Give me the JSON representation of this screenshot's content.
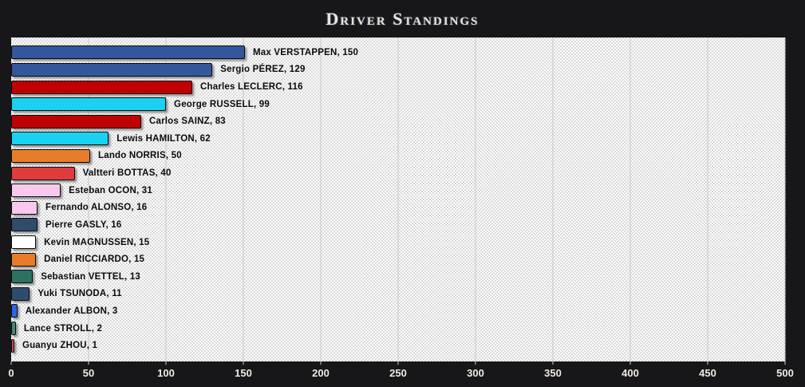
{
  "title": "Driver Standings",
  "theme": {
    "page_background": "#17171a",
    "plot_background": "#fdfdfd",
    "plot_pattern_color": "#dadada",
    "gridline_color": "#c7c7c7",
    "bar_border_color": "#0a0a0a",
    "bar_label_color": "#0b0b0b",
    "axis_label_color": "#f0ebe1",
    "title_color": "#e9e3d9"
  },
  "chart_data": {
    "type": "bar",
    "orientation": "horizontal",
    "title": "Driver Standings",
    "xlabel": "",
    "ylabel": "",
    "xlim": [
      0,
      500
    ],
    "x_ticks": [
      0,
      50,
      100,
      150,
      200,
      250,
      300,
      350,
      400,
      450,
      500
    ],
    "grid": "vertical-major",
    "legend": "none",
    "label_format": "{name}, {points}",
    "drivers": [
      {
        "name": "Max VERSTAPPEN",
        "points": 150,
        "color": "#34569d"
      },
      {
        "name": "Sergio PÉREZ",
        "points": 129,
        "color": "#34569d"
      },
      {
        "name": "Charles LECLERC",
        "points": 116,
        "color": "#c00101"
      },
      {
        "name": "George RUSSELL",
        "points": 99,
        "color": "#1ad2f0"
      },
      {
        "name": "Carlos SAINZ",
        "points": 83,
        "color": "#c00101"
      },
      {
        "name": "Lewis HAMILTON",
        "points": 62,
        "color": "#1ad2f0"
      },
      {
        "name": "Lando NORRIS",
        "points": 50,
        "color": "#e77d2a"
      },
      {
        "name": "Valtteri BOTTAS",
        "points": 40,
        "color": "#e13c3c"
      },
      {
        "name": "Esteban OCON",
        "points": 31,
        "color": "#f9c8ee"
      },
      {
        "name": "Fernando ALONSO",
        "points": 16,
        "color": "#f9c8ee"
      },
      {
        "name": "Pierre GASLY",
        "points": 16,
        "color": "#2f4c6b"
      },
      {
        "name": "Kevin MAGNUSSEN",
        "points": 15,
        "color": "#ffffff"
      },
      {
        "name": "Daniel RICCIARDO",
        "points": 15,
        "color": "#e77d2a"
      },
      {
        "name": "Sebastian VETTEL",
        "points": 13,
        "color": "#2e7163"
      },
      {
        "name": "Yuki TSUNODA",
        "points": 11,
        "color": "#2f4c6b"
      },
      {
        "name": "Alexander ALBON",
        "points": 3,
        "color": "#2767e6"
      },
      {
        "name": "Lance STROLL",
        "points": 2,
        "color": "#3f8878"
      },
      {
        "name": "Guanyu ZHOU",
        "points": 1,
        "color": "#ce4b48"
      }
    ]
  }
}
